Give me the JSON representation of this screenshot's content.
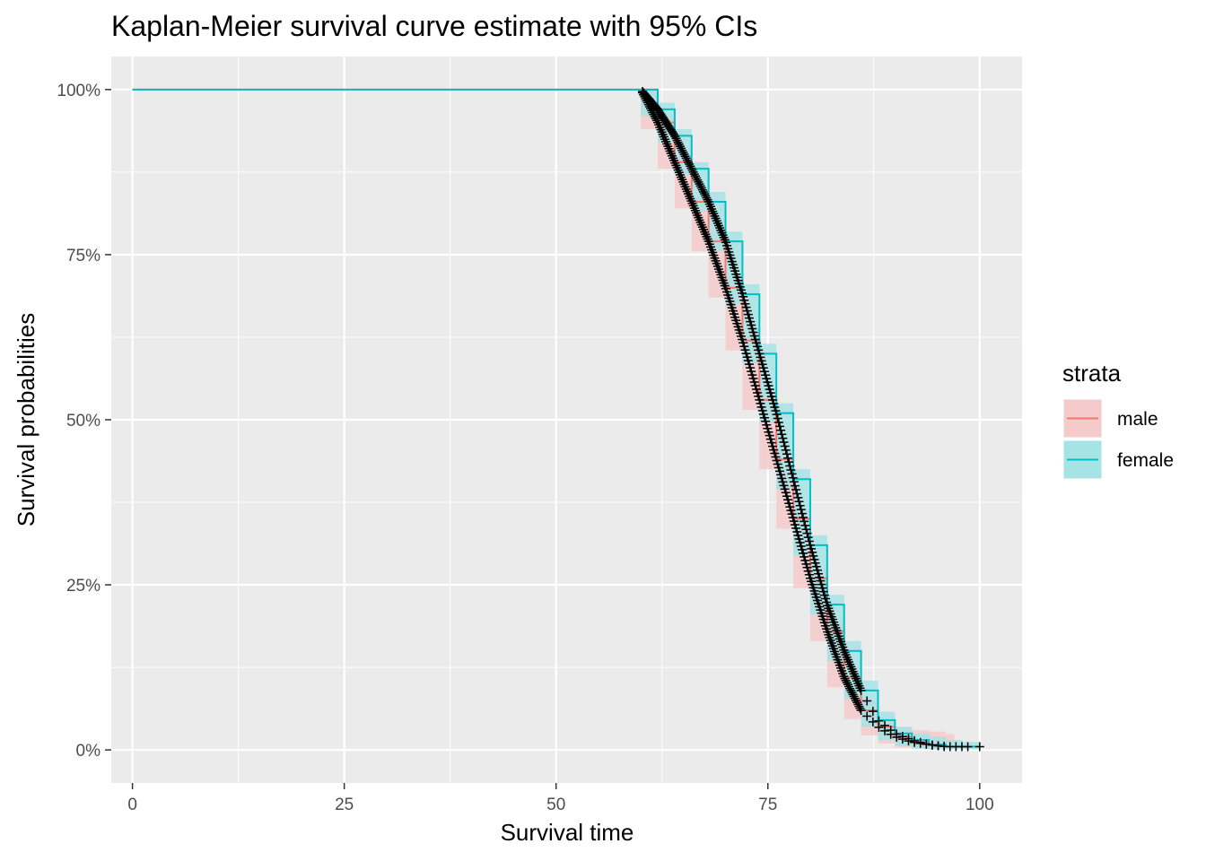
{
  "chart_data": {
    "type": "line",
    "title": "Kaplan-Meier survival curve estimate with 95% CIs",
    "xlabel": "Survival time",
    "ylabel": "Survival probabilities",
    "xlim": [
      -2.5,
      105
    ],
    "ylim": [
      -0.05,
      1.05
    ],
    "x_ticks": [
      0,
      25,
      50,
      75,
      100
    ],
    "x_tick_labels": [
      "0",
      "25",
      "50",
      "75",
      "100"
    ],
    "y_ticks": [
      0,
      0.25,
      0.5,
      0.75,
      1.0
    ],
    "y_tick_labels": [
      "0%",
      "25%",
      "50%",
      "75%",
      "100%"
    ],
    "grid": true,
    "legend": {
      "title": "strata",
      "position": "right"
    },
    "censor_mark": "+",
    "series": [
      {
        "name": "male",
        "color": "#F8766D",
        "ci_fill": "#F4CACA",
        "x": [
          0,
          60,
          62,
          64,
          66,
          68,
          70,
          72,
          74,
          76,
          78,
          80,
          82,
          84,
          86,
          88,
          90,
          92,
          94,
          96,
          97
        ],
        "y": [
          1.0,
          1.0,
          0.95,
          0.89,
          0.83,
          0.77,
          0.7,
          0.62,
          0.53,
          0.44,
          0.35,
          0.26,
          0.18,
          0.11,
          0.06,
          0.035,
          0.02,
          0.012,
          0.008,
          0.005,
          0.005
        ],
        "lower": [
          1.0,
          1.0,
          0.94,
          0.88,
          0.82,
          0.755,
          0.685,
          0.605,
          0.515,
          0.425,
          0.335,
          0.245,
          0.165,
          0.095,
          0.047,
          0.022,
          0.01,
          0.004,
          0.002,
          0.001,
          0.001
        ],
        "upper": [
          1.0,
          1.0,
          0.96,
          0.9,
          0.84,
          0.785,
          0.715,
          0.635,
          0.545,
          0.455,
          0.365,
          0.275,
          0.195,
          0.125,
          0.075,
          0.05,
          0.035,
          0.03,
          0.028,
          0.024,
          0.024
        ]
      },
      {
        "name": "female",
        "color": "#00BFC4",
        "ci_fill": "#A6E3E5",
        "x": [
          0,
          60,
          62,
          64,
          66,
          68,
          70,
          72,
          74,
          76,
          78,
          80,
          82,
          84,
          86,
          88,
          90,
          92,
          94,
          96,
          98,
          100
        ],
        "y": [
          1.0,
          1.0,
          0.97,
          0.93,
          0.88,
          0.83,
          0.77,
          0.69,
          0.6,
          0.51,
          0.41,
          0.31,
          0.22,
          0.15,
          0.09,
          0.045,
          0.025,
          0.015,
          0.008,
          0.005,
          0.005,
          0.005
        ],
        "lower": [
          1.0,
          1.0,
          0.96,
          0.92,
          0.87,
          0.815,
          0.755,
          0.675,
          0.585,
          0.495,
          0.395,
          0.295,
          0.205,
          0.135,
          0.077,
          0.035,
          0.015,
          0.006,
          0.002,
          0.001,
          0.001,
          0.001
        ],
        "upper": [
          1.0,
          1.0,
          0.98,
          0.94,
          0.89,
          0.845,
          0.785,
          0.705,
          0.615,
          0.525,
          0.425,
          0.325,
          0.235,
          0.165,
          0.105,
          0.058,
          0.035,
          0.025,
          0.02,
          0.015,
          0.012,
          0.012
        ]
      }
    ]
  }
}
